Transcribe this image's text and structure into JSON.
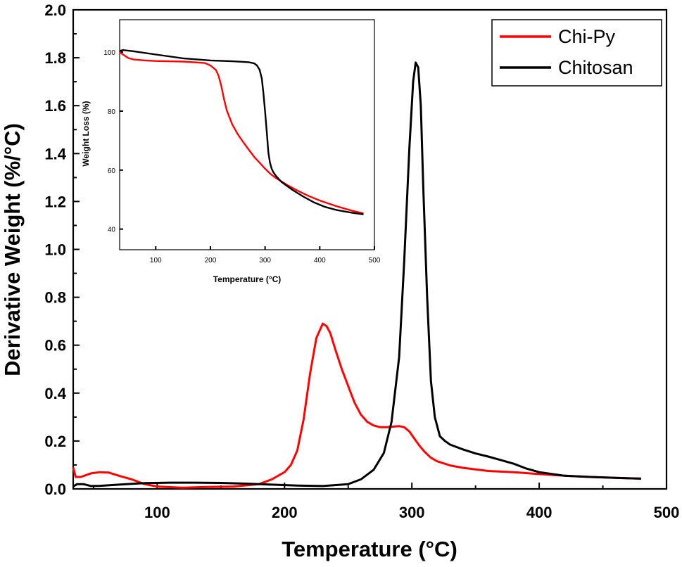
{
  "chart_data": [
    {
      "type": "line",
      "role": "main",
      "xlabel": "Temperature (°C)",
      "ylabel": "Derivative Weight (%/°C)",
      "xlim": [
        34,
        500
      ],
      "ylim": [
        0,
        2.0
      ],
      "xticks": [
        100,
        200,
        300,
        400,
        500
      ],
      "yticks": [
        0.0,
        0.2,
        0.4,
        0.6,
        0.8,
        1.0,
        1.2,
        1.4,
        1.6,
        1.8,
        2.0
      ],
      "ytick_labels": [
        "0.0",
        "0.2",
        "0.4",
        "0.6",
        "0.8",
        "1.0",
        "1.2",
        "1.4",
        "1.6",
        "1.8",
        "2.0"
      ],
      "legend_position": "top-right",
      "series": [
        {
          "name": "Chi-Py",
          "color": "#ff0000",
          "x": [
            34,
            36,
            40,
            48,
            55,
            62,
            70,
            80,
            90,
            100,
            120,
            140,
            160,
            170,
            180,
            190,
            200,
            205,
            210,
            215,
            220,
            225,
            230,
            233,
            236,
            240,
            245,
            250,
            255,
            260,
            265,
            270,
            275,
            280,
            285,
            290,
            294,
            298,
            302,
            306,
            310,
            315,
            320,
            330,
            340,
            360,
            380,
            400,
            420,
            440,
            460,
            480
          ],
          "y": [
            0.09,
            0.05,
            0.05,
            0.065,
            0.07,
            0.068,
            0.055,
            0.04,
            0.02,
            0.01,
            0.005,
            0.008,
            0.01,
            0.015,
            0.02,
            0.04,
            0.07,
            0.1,
            0.16,
            0.29,
            0.48,
            0.63,
            0.69,
            0.68,
            0.65,
            0.58,
            0.5,
            0.43,
            0.36,
            0.31,
            0.28,
            0.265,
            0.258,
            0.258,
            0.26,
            0.262,
            0.258,
            0.24,
            0.21,
            0.18,
            0.155,
            0.13,
            0.115,
            0.098,
            0.088,
            0.075,
            0.07,
            0.062,
            0.055,
            0.05,
            0.046,
            0.043
          ]
        },
        {
          "name": "Chitosan",
          "color": "#000000",
          "x": [
            34,
            37,
            42,
            48,
            55,
            70,
            90,
            110,
            130,
            150,
            170,
            190,
            210,
            230,
            250,
            260,
            270,
            278,
            284,
            290,
            294,
            298,
            301,
            303,
            305,
            307,
            309,
            312,
            315,
            318,
            322,
            326,
            330,
            340,
            350,
            360,
            370,
            380,
            390,
            400,
            420,
            440,
            460,
            480
          ],
          "y": [
            0.01,
            0.02,
            0.02,
            0.012,
            0.013,
            0.018,
            0.024,
            0.026,
            0.026,
            0.025,
            0.022,
            0.018,
            0.014,
            0.012,
            0.02,
            0.04,
            0.08,
            0.15,
            0.28,
            0.55,
            0.95,
            1.42,
            1.7,
            1.78,
            1.76,
            1.6,
            1.25,
            0.8,
            0.45,
            0.3,
            0.22,
            0.2,
            0.185,
            0.165,
            0.148,
            0.135,
            0.12,
            0.105,
            0.085,
            0.07,
            0.055,
            0.05,
            0.046,
            0.043
          ]
        }
      ]
    },
    {
      "type": "line",
      "role": "inset",
      "xlabel": "Temperature (°C)",
      "ylabel": "Weight Loss (%)",
      "xlim": [
        34,
        500
      ],
      "ylim": [
        33,
        111
      ],
      "xticks": [
        100,
        200,
        300,
        400,
        500
      ],
      "yticks": [
        40,
        60,
        80,
        100
      ],
      "series": [
        {
          "name": "Chi-Py",
          "color": "#ff0000",
          "x": [
            34,
            40,
            50,
            60,
            80,
            100,
            150,
            190,
            200,
            210,
            215,
            220,
            225,
            230,
            240,
            250,
            260,
            270,
            280,
            290,
            300,
            310,
            320,
            340,
            360,
            380,
            400,
            430,
            460,
            480
          ],
          "y": [
            100,
            99.2,
            98,
            97.5,
            97.2,
            97,
            96.8,
            96.3,
            95.5,
            94,
            92,
            88.5,
            84,
            80.2,
            75.5,
            72.2,
            69.5,
            67,
            64.5,
            62.5,
            60.5,
            58.7,
            57.3,
            55,
            53,
            51.2,
            49.7,
            47.8,
            46.2,
            45.3
          ]
        },
        {
          "name": "Chitosan",
          "color": "#000000",
          "x": [
            34,
            40,
            60,
            100,
            150,
            200,
            240,
            270,
            280,
            285,
            290,
            294,
            297,
            300,
            303,
            306,
            309,
            312,
            315,
            320,
            330,
            350,
            370,
            390,
            410,
            430,
            460,
            480
          ],
          "y": [
            100.4,
            100.7,
            100.3,
            99.2,
            97.9,
            97.2,
            96.9,
            96.6,
            96.2,
            95.5,
            94,
            91,
            86,
            80,
            73,
            66,
            62.5,
            60.5,
            59.3,
            58,
            56,
            53.3,
            51,
            49,
            47.5,
            46.5,
            45.5,
            45
          ]
        }
      ]
    }
  ]
}
